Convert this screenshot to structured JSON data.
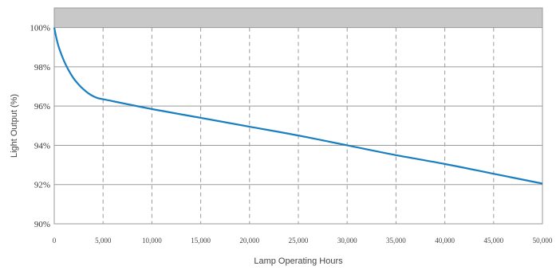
{
  "chart_data": {
    "type": "line",
    "title": "",
    "xlabel": "Lamp Operating Hours",
    "ylabel": "Light Output (%)",
    "xlim": [
      0,
      50000
    ],
    "ylim": [
      90,
      101
    ],
    "x_ticks": [
      0,
      5000,
      10000,
      15000,
      20000,
      25000,
      30000,
      35000,
      40000,
      45000,
      50000
    ],
    "x_tick_labels": [
      "0",
      "5,000",
      "10,000",
      "15,000",
      "20,000",
      "25,000",
      "30,000",
      "35,000",
      "40,000",
      "45,000",
      "50,000"
    ],
    "y_ticks": [
      90,
      92,
      94,
      96,
      98,
      100
    ],
    "y_tick_labels": [
      "90%",
      "92%",
      "94%",
      "96%",
      "98%",
      "100%"
    ],
    "grid": {
      "horizontal": true,
      "vertical": "dashed"
    },
    "shaded_band": [
      100,
      101
    ],
    "colors": {
      "line": "#1a7fc1",
      "band": "#c8c8c8",
      "grid": "#9a9a9a",
      "frame": "#9a9a9a"
    },
    "series": [
      {
        "x": [
          0,
          250,
          500,
          1000,
          1500,
          2000,
          2500,
          3000,
          3500,
          4000,
          4500,
          5000,
          10000,
          15000,
          20000,
          25000,
          30000,
          35000,
          40000,
          45000,
          50000
        ],
        "y": [
          100.0,
          99.4,
          98.95,
          98.3,
          97.8,
          97.4,
          97.1,
          96.85,
          96.65,
          96.5,
          96.4,
          96.35,
          95.85,
          95.4,
          94.95,
          94.5,
          94.0,
          93.5,
          93.05,
          92.55,
          92.05
        ]
      }
    ]
  }
}
